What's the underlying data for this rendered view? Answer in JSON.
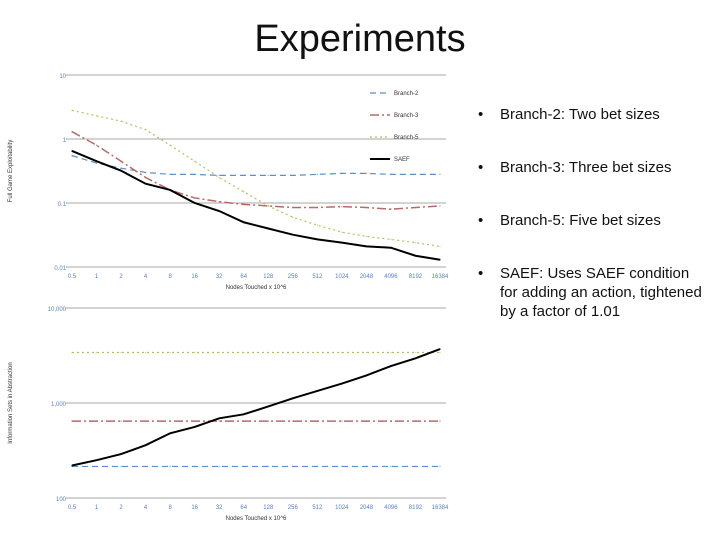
{
  "slide": {
    "title": "Experiments"
  },
  "bullets": [
    "Branch-2: Two bet sizes",
    "Branch-3: Three bet sizes",
    "Branch-5: Five bet sizes",
    "SAEF: Uses SAEF condition for adding an action, tightened by a factor of 1.01"
  ],
  "colors": {
    "branch2": "#5b8fc8",
    "branch3": "#b76a6a",
    "branch5": "#b5bf6a",
    "saef": "#000000",
    "axis": "#8a8a8a",
    "tick": "#5b7fc0"
  },
  "chart_data": [
    {
      "type": "line",
      "scale": "log",
      "xlabel": "Nodes Touched x 10^6",
      "ylabel": "Full Game Exploitability",
      "ylim": [
        0.01,
        10
      ],
      "yticks": [
        "10",
        "1",
        "0.1",
        "0.01"
      ],
      "categories": [
        "0.5",
        "1",
        "2",
        "4",
        "8",
        "16",
        "32",
        "64",
        "128",
        "256",
        "512",
        "1024",
        "2048",
        "4096",
        "8192",
        "16384"
      ],
      "legend_position": "top-right",
      "series": [
        {
          "name": "Branch-2",
          "key": "branch2",
          "values": [
            0.55,
            0.42,
            0.35,
            0.3,
            0.28,
            0.28,
            0.27,
            0.27,
            0.27,
            0.27,
            0.28,
            0.29,
            0.29,
            0.28,
            0.28,
            0.28
          ]
        },
        {
          "name": "Branch-3",
          "key": "branch3",
          "values": [
            1.3,
            0.8,
            0.45,
            0.25,
            0.16,
            0.12,
            0.105,
            0.095,
            0.09,
            0.085,
            0.085,
            0.088,
            0.085,
            0.08,
            0.085,
            0.09
          ]
        },
        {
          "name": "Branch-5",
          "key": "branch5",
          "values": [
            2.8,
            2.3,
            1.9,
            1.4,
            0.8,
            0.45,
            0.25,
            0.15,
            0.09,
            0.06,
            0.045,
            0.035,
            0.03,
            0.027,
            0.024,
            0.021
          ]
        },
        {
          "name": "SAEF",
          "key": "saef",
          "values": [
            0.65,
            0.45,
            0.32,
            0.2,
            0.16,
            0.1,
            0.075,
            0.05,
            0.04,
            0.032,
            0.027,
            0.024,
            0.021,
            0.02,
            0.015,
            0.013
          ]
        }
      ]
    },
    {
      "type": "line",
      "scale": "log",
      "xlabel": "Nodes Touched x 10^6",
      "ylabel": "Information Sets in Abstraction",
      "ylim": [
        100,
        10000
      ],
      "yticks": [
        "10,000",
        "1,000",
        "100"
      ],
      "categories": [
        "0.5",
        "1",
        "2",
        "4",
        "8",
        "16",
        "32",
        "64",
        "128",
        "256",
        "512",
        "1024",
        "2048",
        "4096",
        "8192",
        "16384"
      ],
      "series": [
        {
          "key": "branch2",
          "values": [
            215,
            215,
            215,
            215,
            215,
            215,
            215,
            215,
            215,
            215,
            215,
            215,
            215,
            215,
            215,
            215
          ]
        },
        {
          "key": "branch3",
          "values": [
            645,
            645,
            645,
            645,
            645,
            645,
            645,
            645,
            645,
            645,
            645,
            645,
            645,
            645,
            645,
            645
          ]
        },
        {
          "key": "branch5",
          "values": [
            3400,
            3400,
            3400,
            3400,
            3400,
            3400,
            3400,
            3400,
            3400,
            3400,
            3400,
            3400,
            3400,
            3400,
            3400,
            3400
          ]
        },
        {
          "key": "saef",
          "values": [
            220,
            250,
            290,
            360,
            480,
            560,
            690,
            760,
            920,
            1120,
            1340,
            1600,
            1950,
            2450,
            2950,
            3700
          ]
        }
      ]
    }
  ]
}
